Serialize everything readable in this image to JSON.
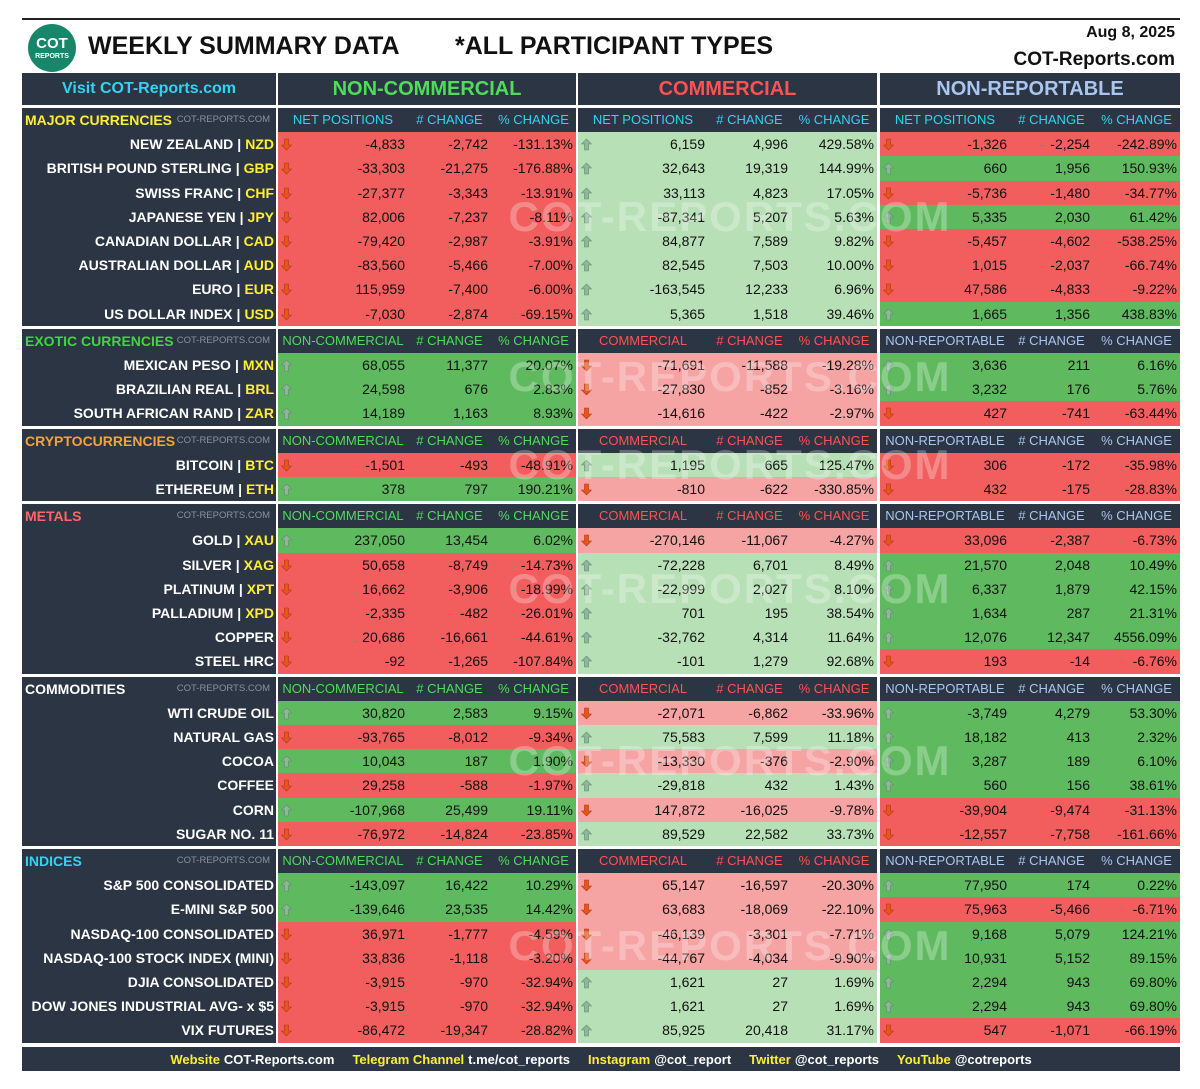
{
  "header": {
    "title": "WEEKLY SUMMARY DATA",
    "subtitle": "*ALL PARTICIPANT TYPES",
    "date": "Aug 8, 2025",
    "site": "COT-Reports.com",
    "logo": "COT",
    "logo_sub": "REPORTS"
  },
  "watermark": "COT-REPORTS.COM",
  "table": {
    "link": "Visit COT-Reports.com",
    "code_separator": "|",
    "groups": [
      "NON-COMMERCIAL",
      "COMMERCIAL",
      "NON-REPORTABLE"
    ],
    "group_colors": [
      "#4fdc5a",
      "#ff5252",
      "#a9c6ee"
    ],
    "sections": [
      {
        "title": "MAJOR CURRENCIES",
        "color": "#ffee33",
        "tag": "COT-REPORTS.COM",
        "column_color": "#33d3f3",
        "columns": [
          "NET POSITIONS",
          "# CHANGE",
          "% CHANGE",
          "NET POSITIONS",
          "# CHANGE",
          "% CHANGE",
          "NET POSITIONS",
          "# CHANGE",
          "% CHANGE"
        ],
        "rows": [
          {
            "name": "NEW ZEALAND",
            "code": "NZD",
            "cells": [
              "-4,833",
              "-2,742",
              "-131.13%",
              "6,159",
              "4,996",
              "429.58%",
              "-1,326",
              "-2,254",
              "-242.89%"
            ]
          },
          {
            "name": "BRITISH POUND STERLING",
            "code": "GBP",
            "cells": [
              "-33,303",
              "-21,275",
              "-176.88%",
              "32,643",
              "19,319",
              "144.99%",
              "660",
              "1,956",
              "150.93%"
            ]
          },
          {
            "name": "SWISS FRANC",
            "code": "CHF",
            "cells": [
              "-27,377",
              "-3,343",
              "-13.91%",
              "33,113",
              "4,823",
              "17.05%",
              "-5,736",
              "-1,480",
              "-34.77%"
            ]
          },
          {
            "name": "JAPANESE YEN",
            "code": "JPY",
            "cells": [
              "82,006",
              "-7,237",
              "-8.11%",
              "-87,341",
              "5,207",
              "5.63%",
              "5,335",
              "2,030",
              "61.42%"
            ]
          },
          {
            "name": "CANADIAN DOLLAR",
            "code": "CAD",
            "cells": [
              "-79,420",
              "-2,987",
              "-3.91%",
              "84,877",
              "7,589",
              "9.82%",
              "-5,457",
              "-4,602",
              "-538.25%"
            ]
          },
          {
            "name": "AUSTRALIAN DOLLAR",
            "code": "AUD",
            "cells": [
              "-83,560",
              "-5,466",
              "-7.00%",
              "82,545",
              "7,503",
              "10.00%",
              "1,015",
              "-2,037",
              "-66.74%"
            ]
          },
          {
            "name": "EURO",
            "code": "EUR",
            "cells": [
              "115,959",
              "-7,400",
              "-6.00%",
              "-163,545",
              "12,233",
              "6.96%",
              "47,586",
              "-4,833",
              "-9.22%"
            ]
          },
          {
            "name": "US DOLLAR INDEX",
            "code": "USD",
            "cells": [
              "-7,030",
              "-2,874",
              "-69.15%",
              "5,365",
              "1,518",
              "39.46%",
              "1,665",
              "1,356",
              "438.83%"
            ]
          }
        ]
      },
      {
        "title": "EXOTIC CURRENCIES",
        "color": "#3fd63f",
        "tag": "COT-REPORTS.COM",
        "columns": [
          "NON-COMMERCIAL",
          "# CHANGE",
          "% CHANGE",
          "COMMERCIAL",
          "# CHANGE",
          "% CHANGE",
          "NON-REPORTABLE",
          "# CHANGE",
          "% CHANGE"
        ],
        "rows": [
          {
            "name": "MEXICAN PESO",
            "code": "MXN",
            "cells": [
              "68,055",
              "11,377",
              "20.07%",
              "-71,691",
              "-11,588",
              "-19.28%",
              "3,636",
              "211",
              "6.16%"
            ]
          },
          {
            "name": "BRAZILIAN REAL",
            "code": "BRL",
            "cells": [
              "24,598",
              "676",
              "2.83%",
              "-27,830",
              "-852",
              "-3.16%",
              "3,232",
              "176",
              "5.76%"
            ]
          },
          {
            "name": "SOUTH AFRICAN RAND",
            "code": "ZAR",
            "cells": [
              "14,189",
              "1,163",
              "8.93%",
              "-14,616",
              "-422",
              "-2.97%",
              "427",
              "-741",
              "-63.44%"
            ]
          }
        ]
      },
      {
        "title": "CRYPTOCURRENCIES",
        "color": "#f5a23a",
        "tag": "COT-REPORTS.COM",
        "columns": [
          "NON-COMMERCIAL",
          "# CHANGE",
          "% CHANGE",
          "COMMERCIAL",
          "# CHANGE",
          "% CHANGE",
          "NON-REPORTABLE",
          "# CHANGE",
          "% CHANGE"
        ],
        "rows": [
          {
            "name": "BITCOIN",
            "code": "BTC",
            "cells": [
              "-1,501",
              "-493",
              "-48.91%",
              "1,195",
              "665",
              "125.47%",
              "306",
              "-172",
              "-35.98%"
            ]
          },
          {
            "name": "ETHEREUM",
            "code": "ETH",
            "cells": [
              "378",
              "797",
              "190.21%",
              "-810",
              "-622",
              "-330.85%",
              "432",
              "-175",
              "-28.83%"
            ]
          }
        ]
      },
      {
        "title": "METALS",
        "color": "#ff6666",
        "tag": "COT-REPORTS.COM",
        "columns": [
          "NON-COMMERCIAL",
          "# CHANGE",
          "% CHANGE",
          "COMMERCIAL",
          "# CHANGE",
          "% CHANGE",
          "NON-REPORTABLE",
          "# CHANGE",
          "% CHANGE"
        ],
        "rows": [
          {
            "name": "GOLD",
            "code": "XAU",
            "cells": [
              "237,050",
              "13,454",
              "6.02%",
              "-270,146",
              "-11,067",
              "-4.27%",
              "33,096",
              "-2,387",
              "-6.73%"
            ]
          },
          {
            "name": "SILVER",
            "code": "XAG",
            "cells": [
              "50,658",
              "-8,749",
              "-14.73%",
              "-72,228",
              "6,701",
              "8.49%",
              "21,570",
              "2,048",
              "10.49%"
            ]
          },
          {
            "name": "PLATINUM",
            "code": "XPT",
            "cells": [
              "16,662",
              "-3,906",
              "-18.99%",
              "-22,999",
              "2,027",
              "8.10%",
              "6,337",
              "1,879",
              "42.15%"
            ]
          },
          {
            "name": "PALLADIUM",
            "code": "XPD",
            "cells": [
              "-2,335",
              "-482",
              "-26.01%",
              "701",
              "195",
              "38.54%",
              "1,634",
              "287",
              "21.31%"
            ]
          },
          {
            "name": "COPPER",
            "cells": [
              "20,686",
              "-16,661",
              "-44.61%",
              "-32,762",
              "4,314",
              "11.64%",
              "12,076",
              "12,347",
              "4556.09%"
            ]
          },
          {
            "name": "STEEL HRC",
            "cells": [
              "-92",
              "-1,265",
              "-107.84%",
              "-101",
              "1,279",
              "92.68%",
              "193",
              "-14",
              "-6.76%"
            ]
          }
        ]
      },
      {
        "title": "COMMODITIES",
        "color": "#ffffff",
        "tag": "COT-REPORTS.COM",
        "columns": [
          "NON-COMMERCIAL",
          "# CHANGE",
          "% CHANGE",
          "COMMERCIAL",
          "# CHANGE",
          "% CHANGE",
          "NON-REPORTABLE",
          "# CHANGE",
          "% CHANGE"
        ],
        "rows": [
          {
            "name": "WTI CRUDE OIL",
            "cells": [
              "30,820",
              "2,583",
              "9.15%",
              "-27,071",
              "-6,862",
              "-33.96%",
              "-3,749",
              "4,279",
              "53.30%"
            ]
          },
          {
            "name": "NATURAL GAS",
            "cells": [
              "-93,765",
              "-8,012",
              "-9.34%",
              "75,583",
              "7,599",
              "11.18%",
              "18,182",
              "413",
              "2.32%"
            ]
          },
          {
            "name": "COCOA",
            "cells": [
              "10,043",
              "187",
              "1.90%",
              "-13,330",
              "-376",
              "-2.90%",
              "3,287",
              "189",
              "6.10%"
            ]
          },
          {
            "name": "COFFEE",
            "cells": [
              "29,258",
              "-588",
              "-1.97%",
              "-29,818",
              "432",
              "1.43%",
              "560",
              "156",
              "38.61%"
            ]
          },
          {
            "name": "CORN",
            "cells": [
              "-107,968",
              "25,499",
              "19.11%",
              "147,872",
              "-16,025",
              "-9.78%",
              "-39,904",
              "-9,474",
              "-31.13%"
            ]
          },
          {
            "name": "SUGAR NO. 11",
            "cells": [
              "-76,972",
              "-14,824",
              "-23.85%",
              "89,529",
              "22,582",
              "33.73%",
              "-12,557",
              "-7,758",
              "-161.66%"
            ]
          }
        ]
      },
      {
        "title": "INDICES",
        "color": "#2fd6f2",
        "tag": "COT-REPORTS.COM",
        "columns": [
          "NON-COMMERCIAL",
          "# CHANGE",
          "% CHANGE",
          "COMMERCIAL",
          "# CHANGE",
          "% CHANGE",
          "NON-REPORTABLE",
          "# CHANGE",
          "% CHANGE"
        ],
        "rows": [
          {
            "name": "S&P 500 CONSOLIDATED",
            "cells": [
              "-143,097",
              "16,422",
              "10.29%",
              "65,147",
              "-16,597",
              "-20.30%",
              "77,950",
              "174",
              "0.22%"
            ]
          },
          {
            "name": "E-MINI S&P 500",
            "cells": [
              "-139,646",
              "23,535",
              "14.42%",
              "63,683",
              "-18,069",
              "-22.10%",
              "75,963",
              "-5,466",
              "-6.71%"
            ]
          },
          {
            "name": "NASDAQ-100 CONSOLIDATED",
            "cells": [
              "36,971",
              "-1,777",
              "-4.59%",
              "-46,139",
              "-3,301",
              "-7.71%",
              "9,168",
              "5,079",
              "124.21%"
            ]
          },
          {
            "name": "NASDAQ-100 STOCK INDEX (MINI)",
            "cells": [
              "33,836",
              "-1,118",
              "-3.20%",
              "-44,767",
              "-4,034",
              "-9.90%",
              "10,931",
              "5,152",
              "89.15%"
            ]
          },
          {
            "name": "DJIA CONSOLIDATED",
            "cells": [
              "-3,915",
              "-970",
              "-32.94%",
              "1,621",
              "27",
              "1.69%",
              "2,294",
              "943",
              "69.80%"
            ]
          },
          {
            "name": "DOW JONES INDUSTRIAL AVG- x $5",
            "cells": [
              "-3,915",
              "-970",
              "-32.94%",
              "1,621",
              "27",
              "1.69%",
              "2,294",
              "943",
              "69.80%"
            ]
          },
          {
            "name": "VIX FUTURES",
            "cells": [
              "-86,472",
              "-19,347",
              "-28.82%",
              "85,925",
              "20,418",
              "31.17%",
              "547",
              "-1,071",
              "-66.19%"
            ]
          }
        ]
      }
    ]
  },
  "footer": [
    {
      "label": "Website",
      "value": "COT-Reports.com"
    },
    {
      "label": "Telegram Channel",
      "value": "t.me/cot_reports"
    },
    {
      "label": "Instagram",
      "value": "@cot_report"
    },
    {
      "label": "Twitter",
      "value": "@cot_reports"
    },
    {
      "label": "YouTube",
      "value": "@cotreports"
    }
  ]
}
